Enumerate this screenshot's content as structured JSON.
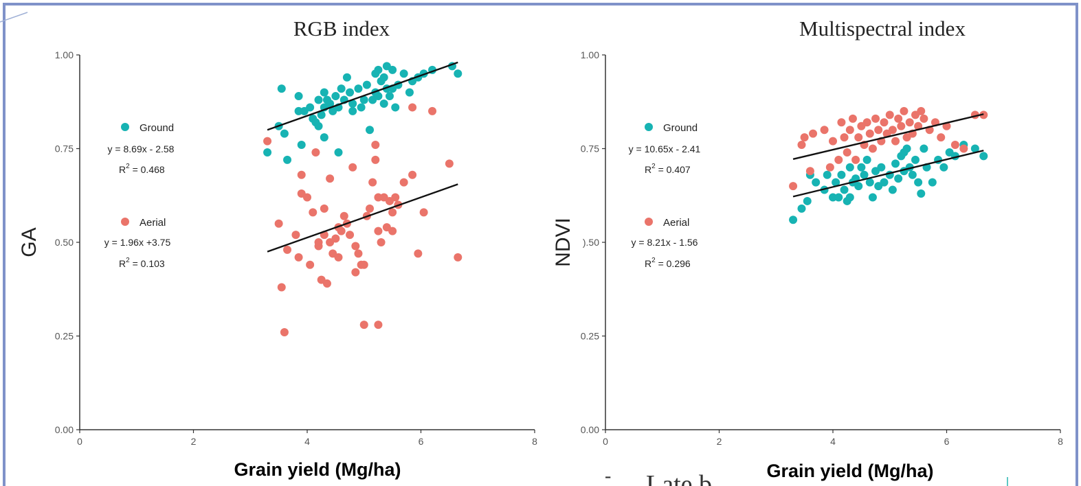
{
  "chart_data": [
    {
      "type": "scatter",
      "title": "RGB index",
      "xlabel": "Grain yield (Mg/ha)",
      "ylabel": "GA",
      "xlim": [
        0,
        8
      ],
      "ylim": [
        0,
        1
      ],
      "xticks": [
        "0",
        "2",
        "4",
        "6",
        "8"
      ],
      "yticks": [
        "0.00",
        "0.25",
        "0.50",
        "0.75",
        "1.00"
      ],
      "legend": [
        {
          "name": "Ground",
          "color": "#17b3b3",
          "equation": "y = 8.69x - 2.58",
          "r2_prefix": "R",
          "r2_sup": "2",
          "r2_value": " = 0.468"
        },
        {
          "name": "Aerial",
          "color": "#ea746a",
          "equation": "y = 1.96x +3.75",
          "r2_prefix": "R",
          "r2_sup": "2",
          "r2_value": " = 0.103"
        }
      ],
      "series": [
        {
          "name": "Ground",
          "color": "#17b3b3",
          "points": [
            [
              3.3,
              0.74
            ],
            [
              3.5,
              0.81
            ],
            [
              3.55,
              0.91
            ],
            [
              3.6,
              0.79
            ],
            [
              3.65,
              0.72
            ],
            [
              3.85,
              0.89
            ],
            [
              3.9,
              0.76
            ],
            [
              3.85,
              0.85
            ],
            [
              3.95,
              0.85
            ],
            [
              4.05,
              0.86
            ],
            [
              4.1,
              0.83
            ],
            [
              4.15,
              0.82
            ],
            [
              4.2,
              0.88
            ],
            [
              4.2,
              0.81
            ],
            [
              4.25,
              0.84
            ],
            [
              4.3,
              0.9
            ],
            [
              4.3,
              0.86
            ],
            [
              4.3,
              0.78
            ],
            [
              4.35,
              0.88
            ],
            [
              4.4,
              0.87
            ],
            [
              4.45,
              0.85
            ],
            [
              4.5,
              0.89
            ],
            [
              4.55,
              0.86
            ],
            [
              4.55,
              0.74
            ],
            [
              4.6,
              0.91
            ],
            [
              4.65,
              0.88
            ],
            [
              4.7,
              0.94
            ],
            [
              4.75,
              0.9
            ],
            [
              4.8,
              0.87
            ],
            [
              4.8,
              0.85
            ],
            [
              4.9,
              0.91
            ],
            [
              4.95,
              0.86
            ],
            [
              5.0,
              0.88
            ],
            [
              5.05,
              0.92
            ],
            [
              5.1,
              0.8
            ],
            [
              5.15,
              0.88
            ],
            [
              5.2,
              0.95
            ],
            [
              5.2,
              0.9
            ],
            [
              5.25,
              0.96
            ],
            [
              5.25,
              0.89
            ],
            [
              5.3,
              0.93
            ],
            [
              5.35,
              0.94
            ],
            [
              5.35,
              0.87
            ],
            [
              5.4,
              0.97
            ],
            [
              5.4,
              0.91
            ],
            [
              5.45,
              0.89
            ],
            [
              5.5,
              0.96
            ],
            [
              5.5,
              0.91
            ],
            [
              5.55,
              0.86
            ],
            [
              5.6,
              0.92
            ],
            [
              5.7,
              0.95
            ],
            [
              5.8,
              0.9
            ],
            [
              5.85,
              0.93
            ],
            [
              5.95,
              0.94
            ],
            [
              6.05,
              0.95
            ],
            [
              6.2,
              0.96
            ],
            [
              6.55,
              0.97
            ],
            [
              6.65,
              0.95
            ]
          ]
        },
        {
          "name": "Aerial",
          "color": "#ea746a",
          "points": [
            [
              3.3,
              0.77
            ],
            [
              3.5,
              0.55
            ],
            [
              3.55,
              0.38
            ],
            [
              3.6,
              0.26
            ],
            [
              3.65,
              0.48
            ],
            [
              3.8,
              0.52
            ],
            [
              3.85,
              0.46
            ],
            [
              3.9,
              0.63
            ],
            [
              3.9,
              0.68
            ],
            [
              4.0,
              0.62
            ],
            [
              4.05,
              0.44
            ],
            [
              4.1,
              0.58
            ],
            [
              4.15,
              0.74
            ],
            [
              4.2,
              0.5
            ],
            [
              4.2,
              0.49
            ],
            [
              4.25,
              0.4
            ],
            [
              4.3,
              0.52
            ],
            [
              4.3,
              0.59
            ],
            [
              4.35,
              0.39
            ],
            [
              4.4,
              0.5
            ],
            [
              4.4,
              0.67
            ],
            [
              4.45,
              0.47
            ],
            [
              4.5,
              0.51
            ],
            [
              4.55,
              0.46
            ],
            [
              4.55,
              0.54
            ],
            [
              4.6,
              0.53
            ],
            [
              4.65,
              0.57
            ],
            [
              4.7,
              0.55
            ],
            [
              4.75,
              0.52
            ],
            [
              4.8,
              0.7
            ],
            [
              4.85,
              0.49
            ],
            [
              4.85,
              0.42
            ],
            [
              4.9,
              0.47
            ],
            [
              4.95,
              0.44
            ],
            [
              5.0,
              0.44
            ],
            [
              5.0,
              0.28
            ],
            [
              5.05,
              0.57
            ],
            [
              5.1,
              0.59
            ],
            [
              5.15,
              0.66
            ],
            [
              5.2,
              0.72
            ],
            [
              5.2,
              0.76
            ],
            [
              5.25,
              0.62
            ],
            [
              5.25,
              0.53
            ],
            [
              5.25,
              0.28
            ],
            [
              5.3,
              0.5
            ],
            [
              5.35,
              0.62
            ],
            [
              5.4,
              0.54
            ],
            [
              5.45,
              0.61
            ],
            [
              5.5,
              0.53
            ],
            [
              5.5,
              0.58
            ],
            [
              5.55,
              0.62
            ],
            [
              5.6,
              0.6
            ],
            [
              5.7,
              0.66
            ],
            [
              5.85,
              0.68
            ],
            [
              5.85,
              0.86
            ],
            [
              5.95,
              0.47
            ],
            [
              6.05,
              0.58
            ],
            [
              6.2,
              0.85
            ],
            [
              6.5,
              0.71
            ],
            [
              6.65,
              0.46
            ]
          ]
        }
      ],
      "fit_lines": [
        {
          "name": "Ground",
          "x": [
            3.3,
            6.65
          ],
          "y": [
            0.8,
            0.98
          ]
        },
        {
          "name": "Aerial",
          "x": [
            3.3,
            6.65
          ],
          "y": [
            0.475,
            0.655
          ]
        }
      ]
    },
    {
      "type": "scatter",
      "title": "Multispectral index",
      "xlabel": "Grain yield (Mg/ha)",
      "ylabel": "NDVI",
      "xlim": [
        0,
        8
      ],
      "ylim": [
        0,
        1
      ],
      "xticks": [
        "0",
        "2",
        "4",
        "6",
        "8"
      ],
      "yticks": [
        "0.00",
        "0.25",
        ").50",
        "0.75",
        "1.00"
      ],
      "legend": [
        {
          "name": "Ground",
          "color": "#17b3b3",
          "equation": "y = 10.65x - 2.41",
          "r2_prefix": "R",
          "r2_sup": "2",
          "r2_value": " = 0.407"
        },
        {
          "name": "Aerial",
          "color": "#ea746a",
          "equation": "y = 8.21x - 1.56",
          "r2_prefix": "R",
          "r2_sup": "2",
          "r2_value": " = 0.296"
        }
      ],
      "series": [
        {
          "name": "Ground",
          "color": "#17b3b3",
          "points": [
            [
              3.3,
              0.56
            ],
            [
              3.45,
              0.59
            ],
            [
              3.55,
              0.61
            ],
            [
              3.6,
              0.68
            ],
            [
              3.7,
              0.66
            ],
            [
              3.85,
              0.64
            ],
            [
              3.9,
              0.68
            ],
            [
              4.0,
              0.62
            ],
            [
              4.05,
              0.66
            ],
            [
              4.1,
              0.62
            ],
            [
              4.15,
              0.68
            ],
            [
              4.2,
              0.64
            ],
            [
              4.25,
              0.61
            ],
            [
              4.3,
              0.62
            ],
            [
              4.3,
              0.7
            ],
            [
              4.35,
              0.66
            ],
            [
              4.4,
              0.67
            ],
            [
              4.45,
              0.65
            ],
            [
              4.5,
              0.7
            ],
            [
              4.55,
              0.68
            ],
            [
              4.6,
              0.72
            ],
            [
              4.65,
              0.66
            ],
            [
              4.7,
              0.62
            ],
            [
              4.75,
              0.69
            ],
            [
              4.8,
              0.65
            ],
            [
              4.85,
              0.7
            ],
            [
              4.9,
              0.66
            ],
            [
              5.0,
              0.68
            ],
            [
              5.05,
              0.64
            ],
            [
              5.1,
              0.71
            ],
            [
              5.15,
              0.67
            ],
            [
              5.2,
              0.73
            ],
            [
              5.25,
              0.69
            ],
            [
              5.25,
              0.74
            ],
            [
              5.3,
              0.75
            ],
            [
              5.35,
              0.7
            ],
            [
              5.4,
              0.68
            ],
            [
              5.45,
              0.72
            ],
            [
              5.5,
              0.66
            ],
            [
              5.55,
              0.63
            ],
            [
              5.6,
              0.75
            ],
            [
              5.65,
              0.7
            ],
            [
              5.75,
              0.66
            ],
            [
              5.85,
              0.72
            ],
            [
              5.95,
              0.7
            ],
            [
              6.05,
              0.74
            ],
            [
              6.15,
              0.73
            ],
            [
              6.3,
              0.76
            ],
            [
              6.5,
              0.75
            ],
            [
              6.65,
              0.73
            ]
          ]
        },
        {
          "name": "Aerial",
          "color": "#ea746a",
          "points": [
            [
              3.3,
              0.65
            ],
            [
              3.45,
              0.76
            ],
            [
              3.5,
              0.78
            ],
            [
              3.6,
              0.69
            ],
            [
              3.65,
              0.79
            ],
            [
              3.85,
              0.8
            ],
            [
              3.95,
              0.7
            ],
            [
              4.0,
              0.77
            ],
            [
              4.1,
              0.72
            ],
            [
              4.15,
              0.82
            ],
            [
              4.2,
              0.78
            ],
            [
              4.25,
              0.74
            ],
            [
              4.3,
              0.8
            ],
            [
              4.35,
              0.83
            ],
            [
              4.4,
              0.72
            ],
            [
              4.45,
              0.78
            ],
            [
              4.5,
              0.81
            ],
            [
              4.55,
              0.76
            ],
            [
              4.6,
              0.82
            ],
            [
              4.65,
              0.79
            ],
            [
              4.7,
              0.75
            ],
            [
              4.75,
              0.83
            ],
            [
              4.8,
              0.8
            ],
            [
              4.85,
              0.77
            ],
            [
              4.9,
              0.82
            ],
            [
              4.95,
              0.79
            ],
            [
              5.0,
              0.84
            ],
            [
              5.05,
              0.8
            ],
            [
              5.1,
              0.77
            ],
            [
              5.15,
              0.83
            ],
            [
              5.2,
              0.81
            ],
            [
              5.25,
              0.85
            ],
            [
              5.3,
              0.78
            ],
            [
              5.35,
              0.82
            ],
            [
              5.4,
              0.79
            ],
            [
              5.45,
              0.84
            ],
            [
              5.5,
              0.81
            ],
            [
              5.55,
              0.85
            ],
            [
              5.6,
              0.83
            ],
            [
              5.7,
              0.8
            ],
            [
              5.8,
              0.82
            ],
            [
              5.9,
              0.78
            ],
            [
              6.0,
              0.81
            ],
            [
              6.15,
              0.76
            ],
            [
              6.3,
              0.75
            ],
            [
              6.5,
              0.84
            ],
            [
              6.65,
              0.84
            ]
          ]
        }
      ],
      "fit_lines": [
        {
          "name": "Aerial",
          "x": [
            3.3,
            6.65
          ],
          "y": [
            0.722,
            0.842
          ]
        },
        {
          "name": "Ground",
          "x": [
            3.3,
            6.65
          ],
          "y": [
            0.622,
            0.745
          ]
        }
      ]
    }
  ],
  "overlay_text": "Late b"
}
